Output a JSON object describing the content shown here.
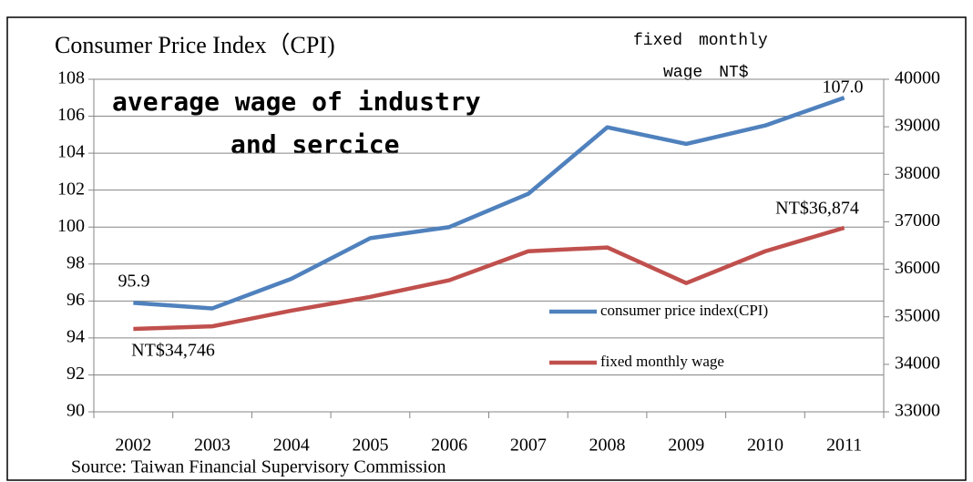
{
  "chart_data": {
    "type": "line",
    "title": "Consumer Price Index（CPI)",
    "y2label": [
      "fixed　monthly",
      "wage　NT$"
    ],
    "annotation": [
      "average wage of industry",
      "and sercice"
    ],
    "source": "Source: Taiwan Financial Supervisory Commission",
    "categories": [
      "2002",
      "2003",
      "2004",
      "2005",
      "2006",
      "2007",
      "2008",
      "2009",
      "2010",
      "2011"
    ],
    "series": [
      {
        "name": "consumer price index(CPI)",
        "color": "#4f81bd",
        "axis": "y",
        "values": [
          95.9,
          95.6,
          97.2,
          99.4,
          100.0,
          101.8,
          105.4,
          104.5,
          105.5,
          107.0
        ],
        "value_labels": [
          "95.9",
          null,
          null,
          null,
          null,
          null,
          null,
          null,
          null,
          "107.0"
        ]
      },
      {
        "name": "fixed monthly wage",
        "color": "#c0504d",
        "axis": "y2",
        "values": [
          34746,
          34800,
          35130,
          35420,
          35770,
          36380,
          36460,
          35710,
          36380,
          36874
        ],
        "value_labels": [
          "NT$34,746",
          null,
          null,
          null,
          null,
          null,
          null,
          null,
          null,
          "NT$36,874"
        ]
      }
    ],
    "ylim": [
      90,
      108
    ],
    "yticks": [
      90,
      92,
      94,
      96,
      98,
      100,
      102,
      104,
      106,
      108
    ],
    "y2lim": [
      33000,
      40000
    ],
    "y2ticks": [
      33000,
      34000,
      35000,
      36000,
      37000,
      38000,
      39000,
      40000
    ],
    "grid": true
  }
}
